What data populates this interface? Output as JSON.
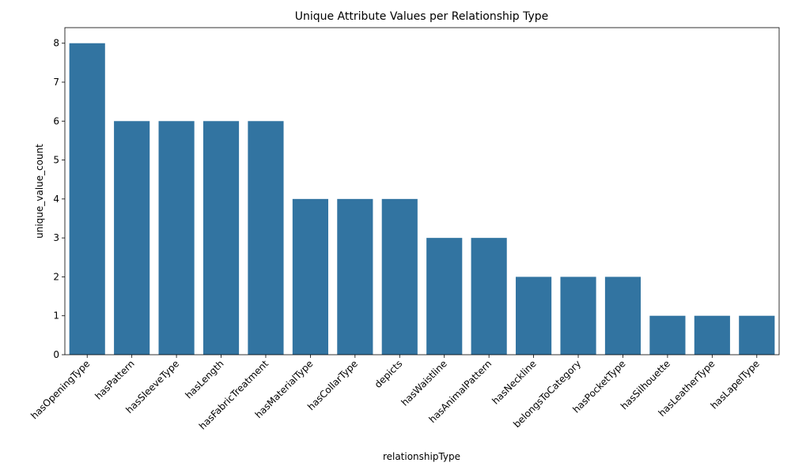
{
  "chart_data": {
    "type": "bar",
    "title": "Unique Attribute Values per Relationship Type",
    "xlabel": "relationshipType",
    "ylabel": "unique_value_count",
    "categories": [
      "hasOpeningType",
      "hasPattern",
      "hasSleeveType",
      "hasLength",
      "hasFabricTreatment",
      "hasMaterialType",
      "hasCollarType",
      "depicts",
      "hasWaistline",
      "hasAnimalPattern",
      "hasNeckline",
      "belongsToCategory",
      "hasPocketType",
      "hasSilhouette",
      "hasLeatherType",
      "hasLapelType"
    ],
    "values": [
      8,
      6,
      6,
      6,
      6,
      4,
      4,
      4,
      3,
      3,
      2,
      2,
      2,
      1,
      1,
      1
    ],
    "ylim": [
      0,
      8.4
    ],
    "yticks": [
      0,
      1,
      2,
      3,
      4,
      5,
      6,
      7,
      8
    ],
    "bar_color": "#3274a1",
    "grid": false,
    "legend": "none"
  }
}
